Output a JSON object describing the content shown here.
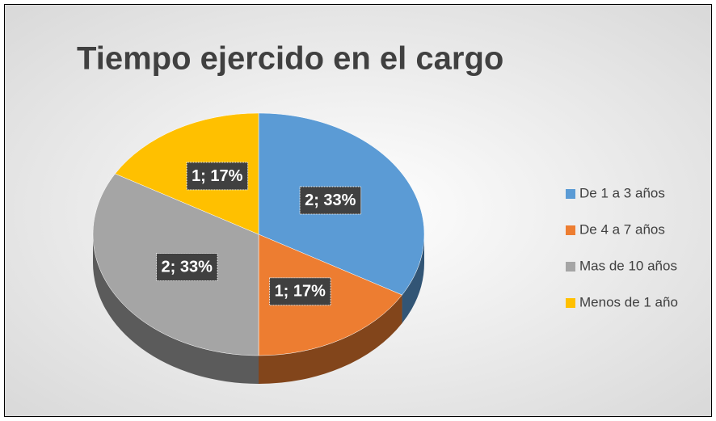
{
  "chart_data": {
    "type": "pie",
    "title": "Tiempo ejercido en el cargo",
    "categories": [
      "De 1 a 3 años",
      "De 4 a 7 años",
      "Mas de 10 años",
      "Menos de 1 año"
    ],
    "values": [
      2,
      1,
      2,
      1
    ],
    "value_labels": [
      "2; 33%",
      "1; 17%",
      "2; 33%",
      "1; 17%"
    ],
    "colors": [
      "#5b9bd5",
      "#ed7d31",
      "#a5a5a5",
      "#ffc000"
    ],
    "legend": "right"
  }
}
